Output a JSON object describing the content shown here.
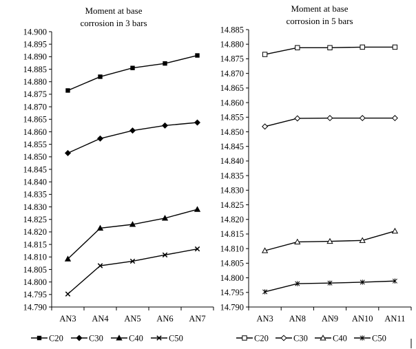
{
  "chart_data": [
    {
      "type": "line",
      "title": [
        "Moment at base",
        "corrosion in 3 bars"
      ],
      "categories": [
        "AN3",
        "AN4",
        "AN5",
        "AN6",
        "AN7"
      ],
      "ylim": [
        14.79,
        14.9
      ],
      "ytick_step": 0.005,
      "yticks": [
        "14.790",
        "14.795",
        "14.800",
        "14.805",
        "14.810",
        "14.815",
        "14.820",
        "14.825",
        "14.830",
        "14.835",
        "14.840",
        "14.845",
        "14.850",
        "14.855",
        "14.860",
        "14.865",
        "14.870",
        "14.875",
        "14.880",
        "14.885",
        "14.890",
        "14.895",
        "14.900"
      ],
      "series": [
        {
          "name": "C20",
          "marker": "square-filled",
          "values": [
            14.8765,
            14.882,
            14.8855,
            14.8873,
            14.8905
          ]
        },
        {
          "name": "C30",
          "marker": "diamond-filled",
          "values": [
            14.8515,
            14.8573,
            14.8605,
            14.8625,
            14.8637
          ]
        },
        {
          "name": "C40",
          "marker": "triangle-filled",
          "values": [
            14.8092,
            14.8215,
            14.823,
            14.8255,
            14.829
          ]
        },
        {
          "name": "C50",
          "marker": "x",
          "values": [
            14.7952,
            14.8065,
            14.8083,
            14.8108,
            14.8132
          ]
        }
      ],
      "grid": false,
      "legend_position": "bottom"
    },
    {
      "type": "line",
      "title": [
        "Moment at base",
        "corrosion in 5 bars"
      ],
      "categories": [
        "AN3",
        "AN8",
        "AN9",
        "AN10",
        "AN11"
      ],
      "ylim": [
        14.79,
        14.885
      ],
      "ytick_step": 0.005,
      "yticks": [
        "14.790",
        "14.795",
        "14.800",
        "14.805",
        "14.810",
        "14.815",
        "14.820",
        "14.825",
        "14.830",
        "14.835",
        "14.840",
        "14.845",
        "14.850",
        "14.855",
        "14.860",
        "14.865",
        "14.870",
        "14.875",
        "14.880",
        "14.885"
      ],
      "series": [
        {
          "name": "C20",
          "marker": "square-open",
          "values": [
            14.8765,
            14.8788,
            14.8788,
            14.879,
            14.879
          ]
        },
        {
          "name": "C30",
          "marker": "diamond-open",
          "values": [
            14.8518,
            14.8546,
            14.8547,
            14.8547,
            14.8547
          ]
        },
        {
          "name": "C40",
          "marker": "triangle-open",
          "values": [
            14.8093,
            14.8123,
            14.8125,
            14.8128,
            14.816
          ]
        },
        {
          "name": "C50",
          "marker": "asterisk",
          "values": [
            14.7952,
            14.798,
            14.7982,
            14.7985,
            14.7989
          ]
        }
      ],
      "grid": false,
      "legend_position": "bottom"
    }
  ]
}
